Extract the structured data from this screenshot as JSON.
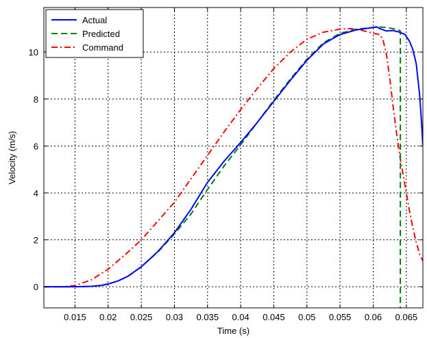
{
  "chart_data": {
    "type": "line",
    "xlabel": "Time (s)",
    "ylabel": "Velocity (m/s)",
    "xlim": [
      0.0103,
      0.0675
    ],
    "ylim": [
      -0.9,
      11.9
    ],
    "xticks": [
      0.015,
      0.02,
      0.025,
      0.03,
      0.035,
      0.04,
      0.045,
      0.05,
      0.055,
      0.06,
      0.065
    ],
    "xtick_labels": [
      "0.015",
      "0.02",
      "0.025",
      "0.03",
      "0.035",
      "0.04",
      "0.045",
      "0.05",
      "0.055",
      "0.06",
      "0.065"
    ],
    "yticks": [
      0,
      2,
      4,
      6,
      8,
      10
    ],
    "ytick_labels": [
      "0",
      "2",
      "4",
      "6",
      "8",
      "10"
    ],
    "grid": true,
    "legend_position": "top-left",
    "series": [
      {
        "name": "Actual",
        "color": "#0000ff",
        "style": "solid",
        "x": [
          0.0103,
          0.015,
          0.0175,
          0.019,
          0.02,
          0.0215,
          0.023,
          0.025,
          0.0275,
          0.03,
          0.0325,
          0.035,
          0.0375,
          0.04,
          0.0425,
          0.045,
          0.0475,
          0.05,
          0.0525,
          0.055,
          0.0575,
          0.06,
          0.0605,
          0.061,
          0.062,
          0.063,
          0.064,
          0.0648,
          0.0655,
          0.066,
          0.0665,
          0.067,
          0.0673,
          0.0675
        ],
        "y": [
          0.0,
          0.0,
          0.02,
          0.06,
          0.12,
          0.25,
          0.45,
          0.85,
          1.5,
          2.3,
          3.3,
          4.45,
          5.35,
          6.15,
          7.0,
          7.9,
          8.8,
          9.65,
          10.35,
          10.75,
          10.95,
          11.05,
          11.08,
          11.0,
          10.9,
          10.92,
          10.85,
          10.75,
          10.45,
          10.1,
          9.5,
          8.2,
          7.0,
          6.0
        ]
      },
      {
        "name": "Predicted",
        "color": "#008000",
        "style": "dashed",
        "x": [
          0.0103,
          0.015,
          0.0175,
          0.019,
          0.02,
          0.0215,
          0.023,
          0.025,
          0.0275,
          0.03,
          0.0325,
          0.035,
          0.0375,
          0.04,
          0.0425,
          0.045,
          0.0475,
          0.05,
          0.0525,
          0.055,
          0.0575,
          0.06,
          0.061,
          0.062,
          0.063,
          0.0638,
          0.0641,
          0.0641
        ],
        "y": [
          0.0,
          0.0,
          0.02,
          0.06,
          0.12,
          0.25,
          0.45,
          0.85,
          1.48,
          2.25,
          3.1,
          4.15,
          5.15,
          6.05,
          7.0,
          7.95,
          8.85,
          9.7,
          10.4,
          10.8,
          10.98,
          11.05,
          11.07,
          11.05,
          11.0,
          10.95,
          10.9,
          -0.9
        ]
      },
      {
        "name": "Command",
        "color": "#ff0000",
        "style": "dashdot",
        "x": [
          0.0103,
          0.013,
          0.015,
          0.0175,
          0.02,
          0.0225,
          0.025,
          0.0275,
          0.03,
          0.0325,
          0.035,
          0.0375,
          0.04,
          0.0425,
          0.045,
          0.0475,
          0.05,
          0.0525,
          0.055,
          0.0565,
          0.058,
          0.06,
          0.061,
          0.0615,
          0.062,
          0.0625,
          0.063,
          0.0635,
          0.064,
          0.0645,
          0.065,
          0.0655,
          0.066,
          0.0665,
          0.067,
          0.0675
        ],
        "y": [
          0.0,
          0.0,
          0.05,
          0.3,
          0.75,
          1.35,
          2.0,
          2.8,
          3.6,
          4.6,
          5.6,
          6.6,
          7.55,
          8.45,
          9.3,
          10.0,
          10.55,
          10.85,
          10.98,
          11.0,
          10.95,
          10.8,
          10.75,
          10.5,
          9.9,
          8.9,
          7.7,
          6.6,
          5.6,
          4.8,
          4.0,
          3.2,
          2.5,
          1.9,
          1.4,
          1.1
        ]
      }
    ]
  }
}
